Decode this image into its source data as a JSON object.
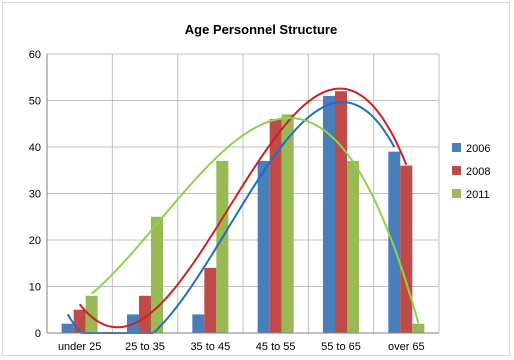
{
  "chart_data": {
    "type": "bar",
    "title": "Age Personnel Structure",
    "xlabel": "",
    "ylabel": "",
    "categories": [
      "under 25",
      "25 to 35",
      "35 to 45",
      "45 to 55",
      "55 to 65",
      "over 65"
    ],
    "series": [
      {
        "name": "2006",
        "values": [
          2,
          4,
          4,
          37,
          51,
          39
        ]
      },
      {
        "name": "2008",
        "values": [
          5,
          8,
          14,
          46,
          52,
          36
        ]
      },
      {
        "name": "2011",
        "values": [
          8,
          25,
          37,
          47,
          37,
          2
        ]
      }
    ],
    "ylim": [
      0,
      60
    ],
    "yticks": [
      0,
      10,
      20,
      30,
      40,
      50,
      60
    ],
    "grid": true,
    "legend_position": "right",
    "trendlines": "polynomial, one per series",
    "colors": {
      "2006": "#4a7ebb",
      "2008": "#be4b48",
      "2011": "#98b954",
      "trend_2006": "#1f6fc7",
      "trend_2008": "#cc2222",
      "trend_2011": "#8fd14f"
    }
  }
}
